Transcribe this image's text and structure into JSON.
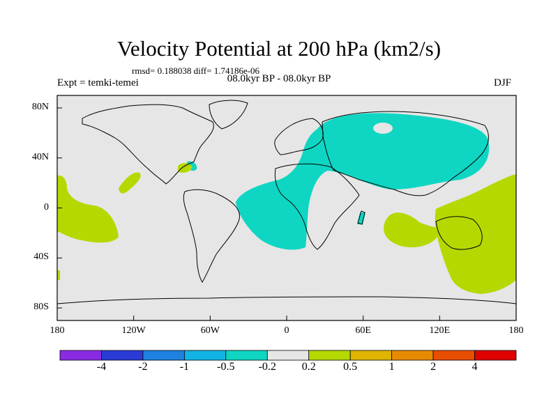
{
  "title": "Velocity Potential at 200 hPa (km2/s)",
  "stats": "rmsd= 0.188038 diff= 1.74186e-06",
  "experiment": "Expt = temki-temei",
  "period": "08.0kyr BP - 08.0kyr BP",
  "season": "DJF",
  "map": {
    "lat_ticks": [
      {
        "value": 80,
        "label": "80N"
      },
      {
        "value": 40,
        "label": "40N"
      },
      {
        "value": 0,
        "label": "0"
      },
      {
        "value": -40,
        "label": "40S"
      },
      {
        "value": -80,
        "label": "80S"
      }
    ],
    "lon_ticks": [
      {
        "value": -180,
        "label": "180"
      },
      {
        "value": -120,
        "label": "120W"
      },
      {
        "value": -60,
        "label": "60W"
      },
      {
        "value": 0,
        "label": "0"
      },
      {
        "value": 60,
        "label": "60E"
      },
      {
        "value": 120,
        "label": "120E"
      },
      {
        "value": 180,
        "label": "180"
      }
    ],
    "background_color": "#e6e6e6"
  },
  "colorbar": {
    "colors": [
      "#8a2be2",
      "#2a3bd6",
      "#1e82e0",
      "#12b4e6",
      "#0fd6c3",
      "#e6e6e6",
      "#b5d800",
      "#e0b400",
      "#e88a00",
      "#e84e00",
      "#e00000"
    ],
    "labels": [
      "-4",
      "-2",
      "-1",
      "-0.5",
      "-0.2",
      "0.2",
      "0.5",
      "1",
      "2",
      "4"
    ]
  }
}
